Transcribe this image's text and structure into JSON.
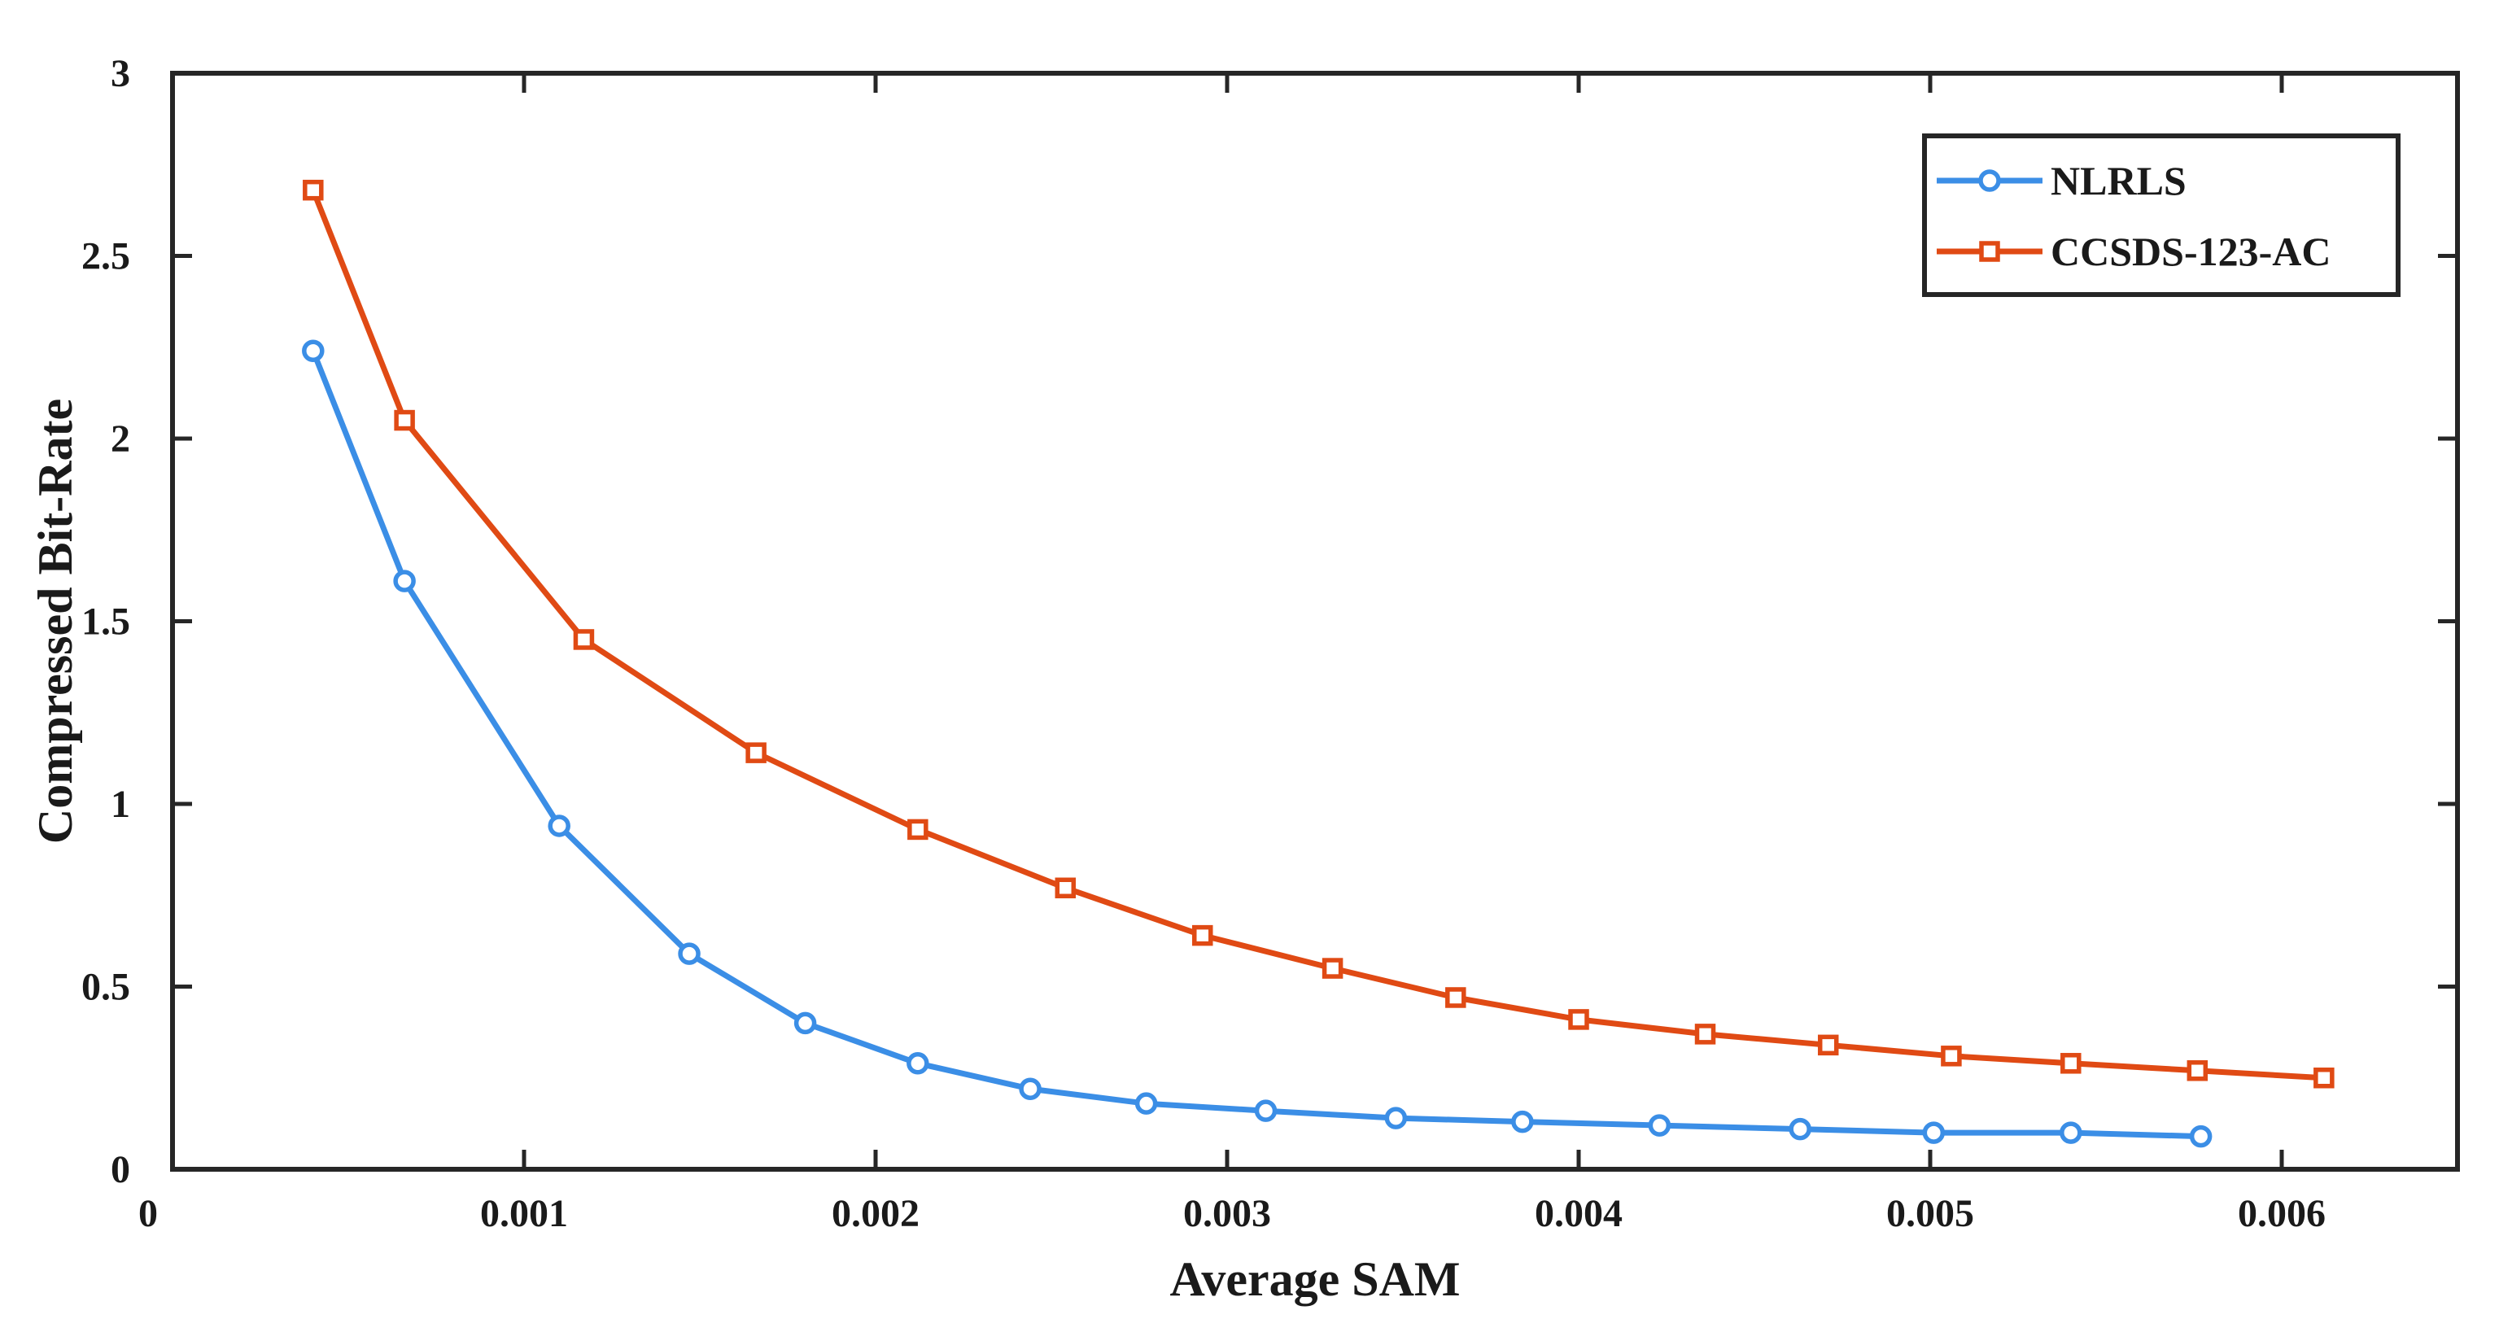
{
  "chart_data": {
    "type": "line",
    "title": "",
    "xlabel": "Average SAM",
    "ylabel": "Compressed Bit-Rate",
    "xlim": [
      0,
      0.0065
    ],
    "ylim": [
      0,
      3
    ],
    "x_ticks": [
      0,
      0.001,
      0.002,
      0.003,
      0.004,
      0.005,
      0.006
    ],
    "x_tick_labels": [
      "0",
      "0.001",
      "0.002",
      "0.003",
      "0.004",
      "0.005",
      "0.006"
    ],
    "y_ticks": [
      0,
      0.5,
      1,
      1.5,
      2,
      2.5,
      3
    ],
    "y_tick_labels": [
      "0",
      "0.5",
      "1",
      "1.5",
      "2",
      "2.5",
      "3"
    ],
    "grid": false,
    "legend_position": "top-right",
    "series": [
      {
        "name": "NLRLS",
        "color": "#3b8ee6",
        "marker": "circle",
        "x": [
          0.0004,
          0.00066,
          0.0011,
          0.00147,
          0.0018,
          0.00212,
          0.00244,
          0.00277,
          0.00311,
          0.00348,
          0.00384,
          0.00423,
          0.00463,
          0.00501,
          0.0054,
          0.00577
        ],
        "y": [
          2.24,
          1.61,
          0.94,
          0.59,
          0.4,
          0.29,
          0.22,
          0.18,
          0.16,
          0.14,
          0.13,
          0.12,
          0.11,
          0.1,
          0.1,
          0.09
        ]
      },
      {
        "name": "CCSDS-123-AC",
        "color": "#e04a14",
        "marker": "square",
        "x": [
          0.0004,
          0.00066,
          0.00117,
          0.00166,
          0.00212,
          0.00254,
          0.00293,
          0.0033,
          0.00365,
          0.004,
          0.00436,
          0.00471,
          0.00506,
          0.0054,
          0.00576,
          0.00612
        ],
        "y": [
          2.68,
          2.05,
          1.45,
          1.14,
          0.93,
          0.77,
          0.64,
          0.55,
          0.47,
          0.41,
          0.37,
          0.34,
          0.31,
          0.29,
          0.27,
          0.25
        ]
      }
    ]
  }
}
